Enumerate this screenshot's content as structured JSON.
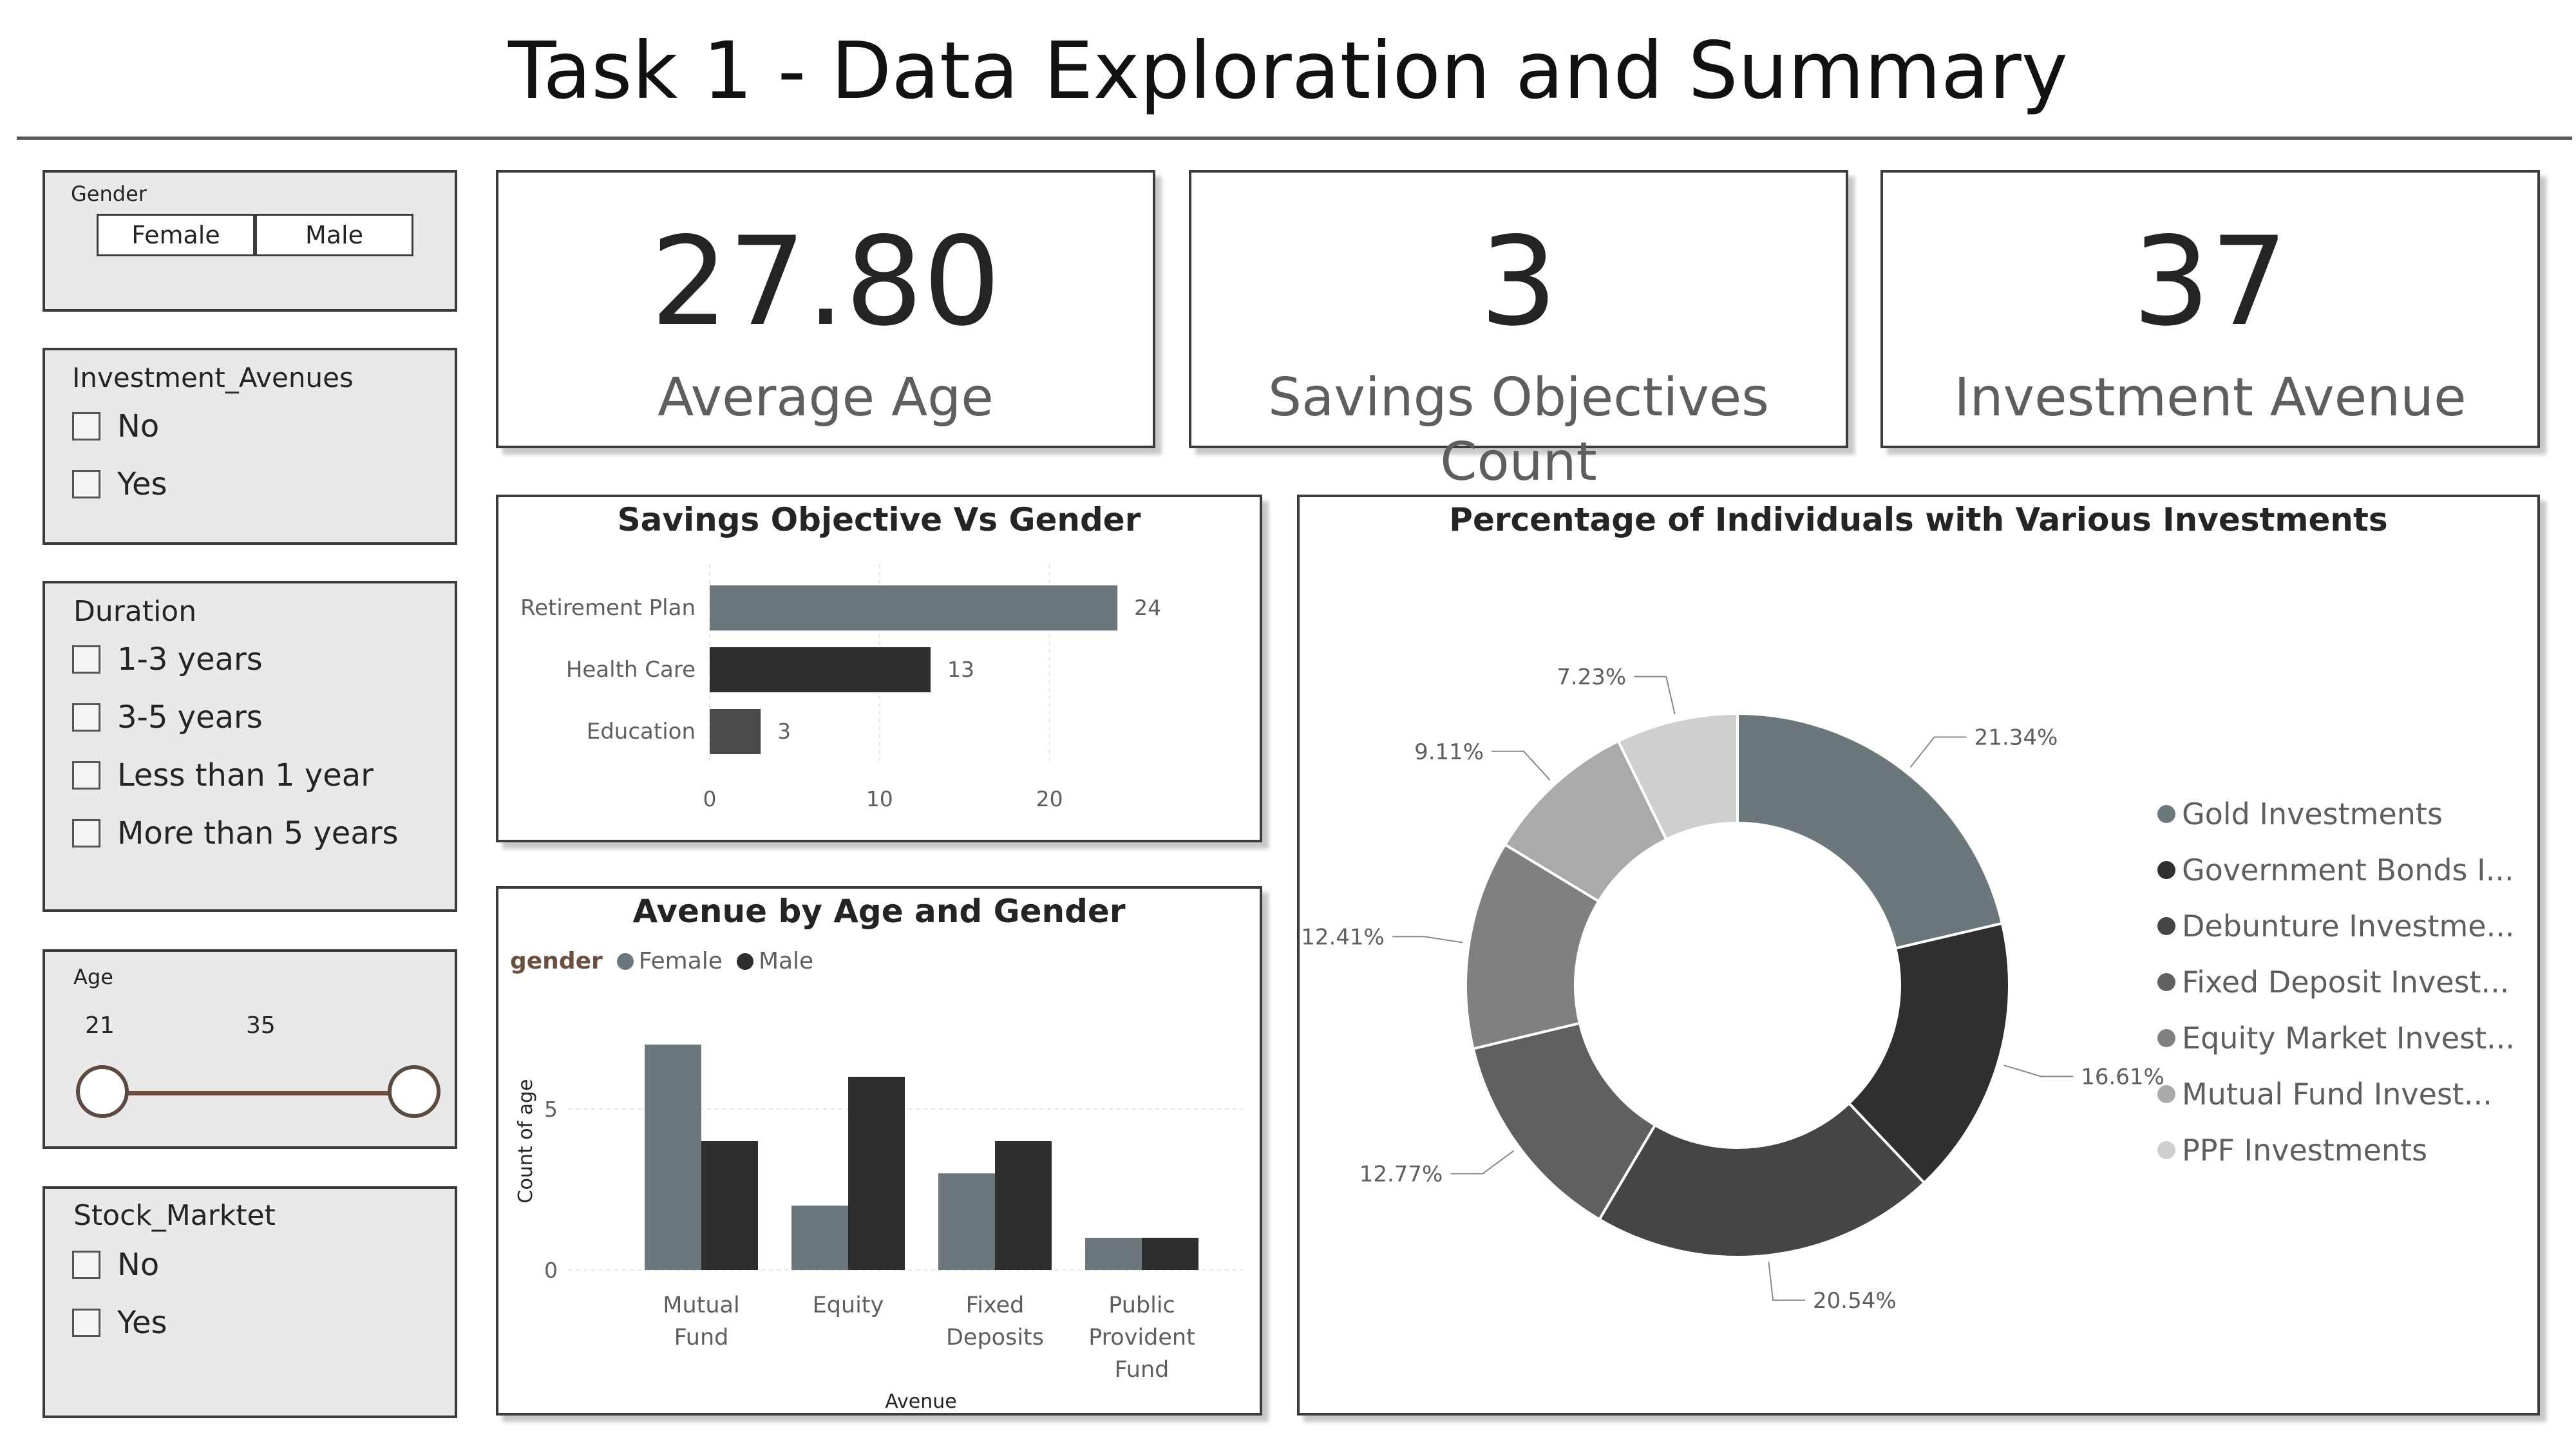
{
  "page": {
    "title": "Task 1 - Data Exploration and Summary"
  },
  "slicers": {
    "gender": {
      "title": "Gender",
      "options": [
        "Female",
        "Male"
      ]
    },
    "investment_avenues": {
      "title": "Investment_Avenues",
      "options": [
        "No",
        "Yes"
      ]
    },
    "duration": {
      "title": "Duration",
      "options": [
        "1-3 years",
        "3-5 years",
        "Less than 1 year",
        "More than 5 years"
      ]
    },
    "age": {
      "title": "Age",
      "min": "21",
      "max": "35"
    },
    "stock_market": {
      "title": "Stock_Marktet",
      "options": [
        "No",
        "Yes"
      ]
    }
  },
  "kpis": {
    "average_age": {
      "value": "27.80",
      "label": "Average Age"
    },
    "savings_objectives": {
      "value": "3",
      "label": "Savings Objectives Count"
    },
    "investment_avenue": {
      "value": "37",
      "label": "Investment Avenue"
    }
  },
  "colors": {
    "female": "#6b777a",
    "male": "#2e2e2e"
  },
  "chart_data": [
    {
      "type": "bar",
      "orientation": "horizontal",
      "title": "Savings Objective Vs Gender",
      "categories": [
        "Retirement Plan",
        "Health Care",
        "Education"
      ],
      "values": [
        24,
        13,
        3
      ],
      "xticks": [
        "0",
        "10",
        "20"
      ],
      "xlim": [
        0,
        25
      ],
      "bar_colors": [
        "#6b777a",
        "#2e2e2e",
        "#4a4a4a"
      ],
      "grid": true
    },
    {
      "type": "bar",
      "title": "Avenue by Age and Gender",
      "categories": [
        "Mutual Fund",
        "Equity",
        "Fixed Deposits",
        "Public Provident Fund"
      ],
      "series": [
        {
          "name": "Female",
          "values": [
            7,
            2,
            3,
            1
          ]
        },
        {
          "name": "Male",
          "values": [
            4,
            6,
            4,
            1
          ]
        }
      ],
      "legend_title": "gender",
      "xlabel": "Avenue",
      "ylabel": "Count of age",
      "yticks": [
        "0",
        "5"
      ],
      "ylim": [
        0,
        7.5
      ],
      "grid": true
    },
    {
      "type": "pie",
      "donut": true,
      "title": "Percentage of Individuals with Various Investments",
      "legend": [
        "Gold Investments",
        "Government Bonds I...",
        "Debunture Investme...",
        "Fixed Deposit Invest...",
        "Equity Market Invest...",
        "Mutual Fund Invest...",
        "PPF Investments"
      ],
      "values": [
        21.34,
        16.61,
        20.54,
        12.77,
        12.41,
        9.11,
        7.23
      ],
      "labels": [
        "21.34%",
        "16.61%",
        "20.54%",
        "12.77%",
        "12.41%",
        "9.11%",
        "7.23%"
      ],
      "colors": [
        "#6b777a",
        "#2f2f2f",
        "#454545",
        "#606060",
        "#808080",
        "#aaaaaa",
        "#cfcfcf"
      ],
      "legend_position": "right"
    }
  ]
}
